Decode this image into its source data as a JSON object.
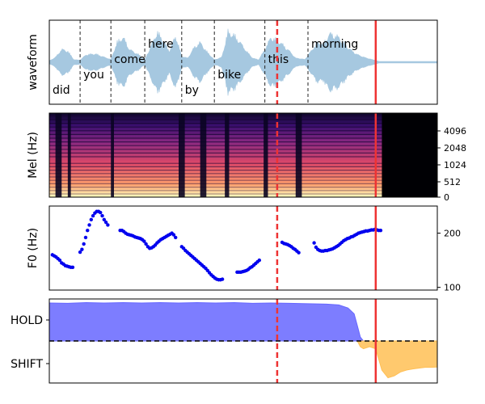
{
  "chart_data": [
    {
      "type": "area",
      "panel": "waveform",
      "ylabel": "waveform",
      "xlim": [
        0,
        6.3
      ],
      "color": "#a6c8e0",
      "words": [
        {
          "text": "did",
          "start": 0.0,
          "end": 0.5,
          "level": "low"
        },
        {
          "text": "you",
          "start": 0.5,
          "end": 1.0,
          "level": "mid"
        },
        {
          "text": "come",
          "start": 1.0,
          "end": 1.55,
          "level": "high"
        },
        {
          "text": "here",
          "start": 1.55,
          "end": 2.15,
          "level": "top"
        },
        {
          "text": "by",
          "start": 2.15,
          "end": 2.68,
          "level": "low"
        },
        {
          "text": "bike",
          "start": 2.68,
          "end": 3.5,
          "level": "mid"
        },
        {
          "text": "this",
          "start": 3.5,
          "end": 4.2,
          "level": "high"
        },
        {
          "text": "morning",
          "start": 4.2,
          "end": 5.3,
          "level": "top"
        }
      ],
      "envelope": [
        {
          "t": 0.0,
          "a": 0.02
        },
        {
          "t": 0.1,
          "a": 0.12
        },
        {
          "t": 0.2,
          "a": 0.35
        },
        {
          "t": 0.3,
          "a": 0.3
        },
        {
          "t": 0.4,
          "a": 0.05
        },
        {
          "t": 0.5,
          "a": 0.04
        },
        {
          "t": 0.6,
          "a": 0.2
        },
        {
          "t": 0.75,
          "a": 0.22
        },
        {
          "t": 0.9,
          "a": 0.12
        },
        {
          "t": 1.0,
          "a": 0.06
        },
        {
          "t": 1.1,
          "a": 0.55
        },
        {
          "t": 1.2,
          "a": 0.7
        },
        {
          "t": 1.3,
          "a": 0.35
        },
        {
          "t": 1.45,
          "a": 0.2
        },
        {
          "t": 1.55,
          "a": 0.05
        },
        {
          "t": 1.65,
          "a": 0.45
        },
        {
          "t": 1.75,
          "a": 0.85
        },
        {
          "t": 1.85,
          "a": 0.6
        },
        {
          "t": 1.95,
          "a": 0.3
        },
        {
          "t": 2.05,
          "a": 0.75
        },
        {
          "t": 2.15,
          "a": 0.15
        },
        {
          "t": 2.25,
          "a": 0.1
        },
        {
          "t": 2.35,
          "a": 0.4
        },
        {
          "t": 2.45,
          "a": 0.55
        },
        {
          "t": 2.55,
          "a": 0.3
        },
        {
          "t": 2.68,
          "a": 0.05
        },
        {
          "t": 2.8,
          "a": 0.12
        },
        {
          "t": 2.9,
          "a": 0.85
        },
        {
          "t": 3.0,
          "a": 0.75
        },
        {
          "t": 3.1,
          "a": 0.55
        },
        {
          "t": 3.2,
          "a": 0.3
        },
        {
          "t": 3.3,
          "a": 0.1
        },
        {
          "t": 3.4,
          "a": 0.05
        },
        {
          "t": 3.5,
          "a": 0.35
        },
        {
          "t": 3.6,
          "a": 0.7
        },
        {
          "t": 3.75,
          "a": 0.55
        },
        {
          "t": 3.9,
          "a": 0.3
        },
        {
          "t": 4.0,
          "a": 0.1
        },
        {
          "t": 4.15,
          "a": 0.06
        },
        {
          "t": 4.25,
          "a": 0.3
        },
        {
          "t": 4.35,
          "a": 0.55
        },
        {
          "t": 4.45,
          "a": 0.5
        },
        {
          "t": 4.55,
          "a": 0.8
        },
        {
          "t": 4.7,
          "a": 0.7
        },
        {
          "t": 4.85,
          "a": 0.4
        },
        {
          "t": 5.0,
          "a": 0.2
        },
        {
          "t": 5.15,
          "a": 0.1
        },
        {
          "t": 5.3,
          "a": 0.03
        },
        {
          "t": 5.35,
          "a": 0.0
        },
        {
          "t": 6.3,
          "a": 0.0
        }
      ],
      "markers": [
        {
          "t": 3.7,
          "style": "dashed",
          "color": "#ee3333"
        },
        {
          "t": 5.3,
          "style": "solid",
          "color": "#ee3333"
        }
      ]
    },
    {
      "type": "heatmap",
      "panel": "mel-spectrogram",
      "ylabel": "Mel (Hz)",
      "xlim": [
        0,
        6.3
      ],
      "yticks": [
        "0",
        "512",
        "1024",
        "2048",
        "4096"
      ],
      "audio_end": 5.4,
      "silent_gaps": [
        {
          "start": 0.1,
          "end": 0.2
        },
        {
          "start": 0.3,
          "end": 0.35
        },
        {
          "start": 1.0,
          "end": 1.05
        },
        {
          "start": 2.1,
          "end": 2.2
        },
        {
          "start": 2.45,
          "end": 2.55
        },
        {
          "start": 2.85,
          "end": 2.92
        },
        {
          "start": 3.48,
          "end": 3.55
        },
        {
          "start": 4.0,
          "end": 4.1
        }
      ],
      "markers": [
        {
          "t": 3.7,
          "style": "dashed",
          "color": "#ee3333"
        },
        {
          "t": 5.3,
          "style": "solid",
          "color": "#ee3333"
        }
      ]
    },
    {
      "type": "scatter",
      "panel": "f0",
      "ylabel": "F0 (Hz)",
      "xlim": [
        0,
        6.3
      ],
      "ylim": [
        95,
        250
      ],
      "yticks": [
        100,
        200
      ],
      "color": "#0000ee",
      "points": [
        [
          0.05,
          160
        ],
        [
          0.08,
          158
        ],
        [
          0.11,
          156
        ],
        [
          0.14,
          153
        ],
        [
          0.17,
          150
        ],
        [
          0.2,
          145
        ],
        [
          0.23,
          143
        ],
        [
          0.26,
          140
        ],
        [
          0.29,
          139
        ],
        [
          0.32,
          138
        ],
        [
          0.35,
          137
        ],
        [
          0.38,
          137
        ],
        [
          0.5,
          165
        ],
        [
          0.53,
          170
        ],
        [
          0.56,
          180
        ],
        [
          0.59,
          192
        ],
        [
          0.62,
          205
        ],
        [
          0.65,
          215
        ],
        [
          0.68,
          225
        ],
        [
          0.71,
          232
        ],
        [
          0.74,
          237
        ],
        [
          0.77,
          240
        ],
        [
          0.8,
          240
        ],
        [
          0.83,
          238
        ],
        [
          0.86,
          232
        ],
        [
          0.89,
          225
        ],
        [
          0.92,
          220
        ],
        [
          0.95,
          215
        ],
        [
          1.15,
          205
        ],
        [
          1.18,
          205
        ],
        [
          1.21,
          203
        ],
        [
          1.24,
          200
        ],
        [
          1.27,
          198
        ],
        [
          1.3,
          197
        ],
        [
          1.33,
          196
        ],
        [
          1.36,
          195
        ],
        [
          1.39,
          193
        ],
        [
          1.42,
          192
        ],
        [
          1.45,
          191
        ],
        [
          1.48,
          190
        ],
        [
          1.51,
          188
        ],
        [
          1.54,
          185
        ],
        [
          1.57,
          180
        ],
        [
          1.6,
          175
        ],
        [
          1.63,
          172
        ],
        [
          1.66,
          173
        ],
        [
          1.69,
          175
        ],
        [
          1.72,
          178
        ],
        [
          1.75,
          182
        ],
        [
          1.78,
          185
        ],
        [
          1.81,
          188
        ],
        [
          1.84,
          190
        ],
        [
          1.87,
          192
        ],
        [
          1.9,
          194
        ],
        [
          1.93,
          196
        ],
        [
          1.96,
          198
        ],
        [
          1.99,
          200
        ],
        [
          2.02,
          197
        ],
        [
          2.05,
          192
        ],
        [
          2.15,
          175
        ],
        [
          2.18,
          172
        ],
        [
          2.21,
          168
        ],
        [
          2.24,
          165
        ],
        [
          2.27,
          162
        ],
        [
          2.3,
          159
        ],
        [
          2.33,
          156
        ],
        [
          2.36,
          153
        ],
        [
          2.39,
          150
        ],
        [
          2.42,
          147
        ],
        [
          2.45,
          144
        ],
        [
          2.48,
          141
        ],
        [
          2.51,
          138
        ],
        [
          2.54,
          135
        ],
        [
          2.57,
          131
        ],
        [
          2.6,
          127
        ],
        [
          2.63,
          123
        ],
        [
          2.66,
          120
        ],
        [
          2.69,
          117
        ],
        [
          2.72,
          115
        ],
        [
          2.75,
          114
        ],
        [
          2.78,
          114
        ],
        [
          2.81,
          115
        ],
        [
          3.05,
          128
        ],
        [
          3.08,
          128
        ],
        [
          3.11,
          128
        ],
        [
          3.14,
          129
        ],
        [
          3.17,
          130
        ],
        [
          3.2,
          131
        ],
        [
          3.23,
          133
        ],
        [
          3.26,
          136
        ],
        [
          3.29,
          138
        ],
        [
          3.32,
          141
        ],
        [
          3.35,
          144
        ],
        [
          3.38,
          147
        ],
        [
          3.41,
          150
        ],
        [
          3.78,
          183
        ],
        [
          3.81,
          181
        ],
        [
          3.84,
          180
        ],
        [
          3.87,
          179
        ],
        [
          3.9,
          177
        ],
        [
          3.93,
          175
        ],
        [
          3.96,
          172
        ],
        [
          3.99,
          170
        ],
        [
          4.02,
          167
        ],
        [
          4.05,
          164
        ],
        [
          4.3,
          182
        ],
        [
          4.33,
          174
        ],
        [
          4.36,
          170
        ],
        [
          4.39,
          168
        ],
        [
          4.42,
          167
        ],
        [
          4.45,
          167
        ],
        [
          4.48,
          168
        ],
        [
          4.51,
          168
        ],
        [
          4.54,
          169
        ],
        [
          4.57,
          170
        ],
        [
          4.6,
          171
        ],
        [
          4.63,
          173
        ],
        [
          4.66,
          175
        ],
        [
          4.69,
          177
        ],
        [
          4.72,
          180
        ],
        [
          4.75,
          183
        ],
        [
          4.78,
          186
        ],
        [
          4.81,
          188
        ],
        [
          4.84,
          190
        ],
        [
          4.87,
          191
        ],
        [
          4.9,
          193
        ],
        [
          4.93,
          194
        ],
        [
          4.96,
          196
        ],
        [
          4.99,
          198
        ],
        [
          5.02,
          200
        ],
        [
          5.05,
          201
        ],
        [
          5.08,
          202
        ],
        [
          5.11,
          203
        ],
        [
          5.14,
          204
        ],
        [
          5.17,
          204
        ],
        [
          5.2,
          205
        ],
        [
          5.23,
          206
        ],
        [
          5.26,
          206
        ],
        [
          5.29,
          207
        ],
        [
          5.32,
          206
        ],
        [
          5.35,
          205
        ],
        [
          5.38,
          205
        ]
      ],
      "markers": [
        {
          "t": 3.7,
          "style": "dashed",
          "color": "#ee3333"
        },
        {
          "t": 5.3,
          "style": "solid",
          "color": "#ee3333"
        }
      ]
    },
    {
      "type": "area",
      "panel": "turn-taking",
      "xlim": [
        0,
        6.3
      ],
      "ylim": [
        -1,
        1
      ],
      "yticks": [
        "HOLD",
        "SHIFT"
      ],
      "threshold": 0,
      "series": [
        {
          "name": "HOLD",
          "color": "#6666ff",
          "points": [
            [
              0,
              0.98
            ],
            [
              0.3,
              0.97
            ],
            [
              0.6,
              0.99
            ],
            [
              0.9,
              0.98
            ],
            [
              1.2,
              0.99
            ],
            [
              1.5,
              0.98
            ],
            [
              1.8,
              0.99
            ],
            [
              2.1,
              0.98
            ],
            [
              2.4,
              0.99
            ],
            [
              2.7,
              0.98
            ],
            [
              3.0,
              0.99
            ],
            [
              3.3,
              0.97
            ],
            [
              3.6,
              0.98
            ],
            [
              3.9,
              0.97
            ],
            [
              4.2,
              0.96
            ],
            [
              4.5,
              0.95
            ],
            [
              4.7,
              0.93
            ],
            [
              4.85,
              0.85
            ],
            [
              4.95,
              0.7
            ],
            [
              5.0,
              0.4
            ],
            [
              5.05,
              0.1
            ],
            [
              5.1,
              0.0
            ]
          ]
        },
        {
          "name": "SHIFT",
          "color": "#ffbf55",
          "points": [
            [
              5.0,
              0.0
            ],
            [
              5.05,
              -0.15
            ],
            [
              5.1,
              -0.2
            ],
            [
              5.2,
              -0.15
            ],
            [
              5.3,
              -0.2
            ],
            [
              5.4,
              -0.75
            ],
            [
              5.5,
              -0.95
            ],
            [
              5.6,
              -0.9
            ],
            [
              5.7,
              -0.8
            ],
            [
              5.8,
              -0.75
            ],
            [
              5.9,
              -0.72
            ],
            [
              6.0,
              -0.7
            ],
            [
              6.1,
              -0.68
            ],
            [
              6.2,
              -0.68
            ],
            [
              6.3,
              -0.67
            ]
          ]
        }
      ],
      "markers": [
        {
          "t": 3.7,
          "style": "dashed",
          "color": "#ee3333"
        },
        {
          "t": 5.3,
          "style": "solid",
          "color": "#ee3333"
        }
      ]
    }
  ]
}
